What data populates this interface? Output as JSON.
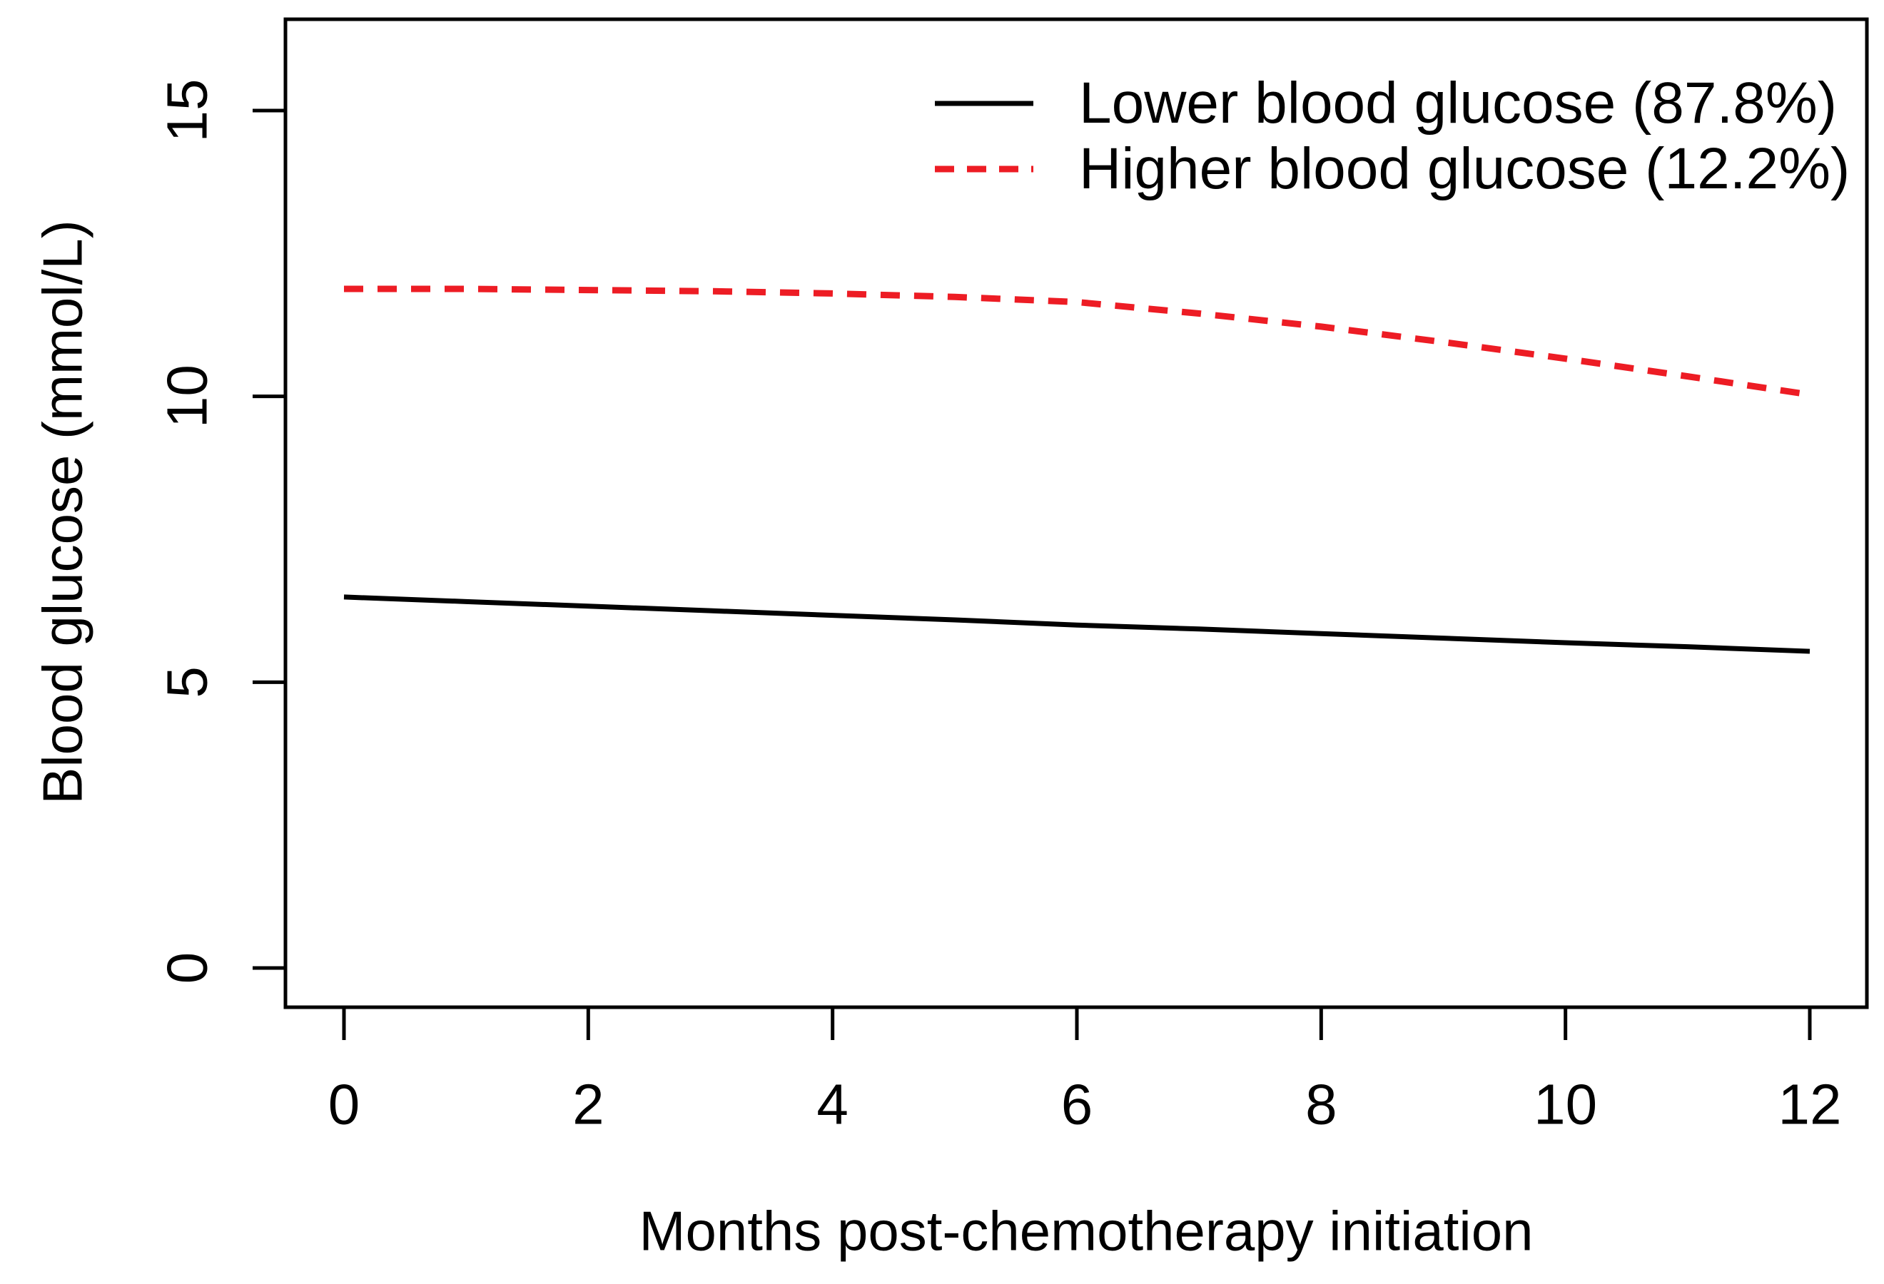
{
  "figure": {
    "background": "#ffffff",
    "text_color": "#000000"
  },
  "chart_data": {
    "type": "line",
    "title": "",
    "xlabel": "Months post-chemotherapy initiation",
    "ylabel": "Blood glucose (mmol/L)",
    "xlim": [
      0,
      12
    ],
    "ylim": [
      0,
      15
    ],
    "xticks": [
      0,
      2,
      4,
      6,
      8,
      10,
      12
    ],
    "yticks": [
      0,
      5,
      10,
      15
    ],
    "grid": false,
    "legend_position": "top-right",
    "x": [
      0,
      1,
      2,
      3,
      4,
      5,
      6,
      7,
      8,
      9,
      10,
      11,
      12
    ],
    "series": [
      {
        "name": "Lower blood glucose (87.8%)",
        "color": "#000000",
        "style": "solid",
        "values": [
          6.49,
          6.41,
          6.33,
          6.25,
          6.17,
          6.09,
          6.0,
          5.93,
          5.85,
          5.77,
          5.69,
          5.62,
          5.54
        ]
      },
      {
        "name": "Higher blood glucose (12.2%)",
        "color": "#ed1c24",
        "style": "dashed",
        "values": [
          11.88,
          11.88,
          11.86,
          11.84,
          11.8,
          11.74,
          11.65,
          11.45,
          11.22,
          10.95,
          10.66,
          10.35,
          10.03
        ]
      }
    ]
  }
}
